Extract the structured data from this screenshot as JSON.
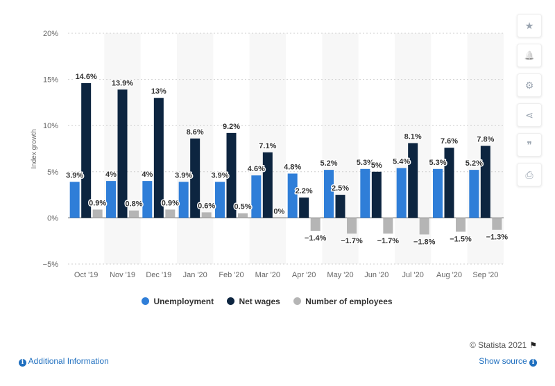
{
  "chart_data": {
    "type": "bar",
    "title": "",
    "xlabel": "",
    "ylabel": "Index growth",
    "ylim": [
      -5,
      20
    ],
    "yticks": [
      20,
      15,
      10,
      5,
      0,
      -5
    ],
    "ytick_labels": [
      "20%",
      "15%",
      "10%",
      "5%",
      "0%",
      "−5%"
    ],
    "grid": true,
    "legend_position": "bottom",
    "categories": [
      "Oct '19",
      "Nov '19",
      "Dec '19",
      "Jan '20",
      "Feb '20",
      "Mar '20",
      "Apr '20",
      "May '20",
      "Jun '20",
      "Jul '20",
      "Aug '20",
      "Sep '20"
    ],
    "series": [
      {
        "name": "Unemployment",
        "color": "#2f7ed8",
        "values": [
          3.9,
          4,
          4,
          3.9,
          3.9,
          4.6,
          4.8,
          5.2,
          5.3,
          5.4,
          5.3,
          5.2
        ],
        "labels": [
          "3.9%",
          "4%",
          "4%",
          "3.9%",
          "3.9%",
          "4.6%",
          "4.8%",
          "5.2%",
          "5.3%",
          "5.4%",
          "5.3%",
          "5.2%"
        ]
      },
      {
        "name": "Net wages",
        "color": "#0d2540",
        "values": [
          14.6,
          13.9,
          13,
          8.6,
          9.2,
          7.1,
          2.2,
          2.5,
          5,
          8.1,
          7.6,
          7.8
        ],
        "labels": [
          "14.6%",
          "13.9%",
          "13%",
          "8.6%",
          "9.2%",
          "7.1%",
          "2.2%",
          "2.5%",
          "5%",
          "8.1%",
          "7.6%",
          "7.8%"
        ]
      },
      {
        "name": "Number of employees",
        "color": "#b5b5b5",
        "values": [
          0.9,
          0.8,
          0.9,
          0.6,
          0.5,
          0,
          -1.4,
          -1.7,
          -1.7,
          -1.8,
          -1.5,
          -1.3
        ],
        "labels": [
          "0.9%",
          "0.8%",
          "0.9%",
          "0.6%",
          "0.5%",
          "0%",
          "−1.4%",
          "−1.7%",
          "−1.7%",
          "−1.8%",
          "−1.5%",
          "−1.3%"
        ]
      }
    ]
  },
  "sidebar": {
    "buttons": [
      {
        "icon": "star-icon",
        "glyph": "★"
      },
      {
        "icon": "bell-icon",
        "glyph": "🔔"
      },
      {
        "icon": "gear-icon",
        "glyph": "⚙"
      },
      {
        "icon": "share-icon",
        "glyph": "⋖"
      },
      {
        "icon": "quote-icon",
        "glyph": "❞"
      },
      {
        "icon": "print-icon",
        "glyph": "⎙"
      }
    ]
  },
  "footer": {
    "credit": "© Statista 2021",
    "additional_info": "Additional Information",
    "show_source": "Show source"
  }
}
